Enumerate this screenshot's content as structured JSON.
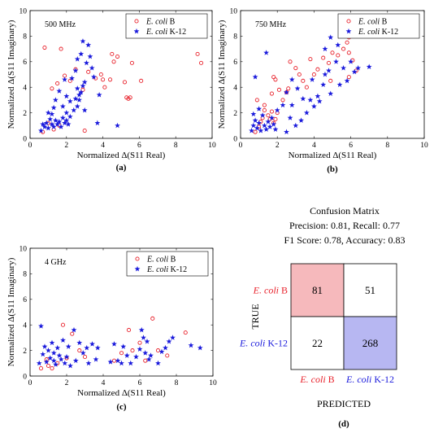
{
  "chart_data": [
    {
      "type": "scatter",
      "panel_label": "(a)",
      "frequency_label": "500 MHz",
      "xlabel": "Normalized Δ(S11 Real)",
      "ylabel": "Normalized Δ(S11 Imaginary)",
      "xlim": [
        0,
        10
      ],
      "ylim": [
        0,
        10
      ],
      "xticks": [
        "0",
        "2",
        "4",
        "6",
        "8",
        "10"
      ],
      "yticks": [
        "0",
        "2",
        "4",
        "6",
        "8",
        "10"
      ],
      "legend_position": "top-right",
      "series": [
        {
          "name_italic": "E. coli",
          "name_rest": " B",
          "marker": "circle",
          "color": "#e8202a",
          "points": [
            [
              0.8,
              7.1
            ],
            [
              1.7,
              7.0
            ],
            [
              1.2,
              3.9
            ],
            [
              1.5,
              4.3
            ],
            [
              1.9,
              4.9
            ],
            [
              2.5,
              5.4
            ],
            [
              2.9,
              3.8
            ],
            [
              3.2,
              5.2
            ],
            [
              3.6,
              4.7
            ],
            [
              3.9,
              5.0
            ],
            [
              4.1,
              4.0
            ],
            [
              4.4,
              4.6
            ],
            [
              4.6,
              6.0
            ],
            [
              4.8,
              6.4
            ],
            [
              5.2,
              4.4
            ],
            [
              5.3,
              3.2
            ],
            [
              5.4,
              3.1
            ],
            [
              5.5,
              3.2
            ],
            [
              5.6,
              5.9
            ],
            [
              6.1,
              4.5
            ],
            [
              9.2,
              6.6
            ],
            [
              9.4,
              5.9
            ],
            [
              3.0,
              0.6
            ],
            [
              1.0,
              1.2
            ],
            [
              1.3,
              0.7
            ],
            [
              0.7,
              0.5
            ],
            [
              1.6,
              1.0
            ],
            [
              4.0,
              4.6
            ],
            [
              2.2,
              4.5
            ],
            [
              4.5,
              6.6
            ]
          ]
        },
        {
          "name_italic": "E. coli",
          "name_rest": " K-12",
          "marker": "star",
          "color": "#1a1adc",
          "points": [
            [
              0.6,
              0.6
            ],
            [
              0.8,
              0.9
            ],
            [
              0.9,
              1.2
            ],
            [
              1.0,
              0.8
            ],
            [
              1.1,
              1.5
            ],
            [
              1.2,
              1.1
            ],
            [
              1.3,
              0.9
            ],
            [
              1.4,
              1.4
            ],
            [
              1.5,
              1.1
            ],
            [
              1.6,
              1.3
            ],
            [
              1.7,
              0.9
            ],
            [
              1.8,
              1.6
            ],
            [
              1.9,
              1.2
            ],
            [
              2.0,
              1.4
            ],
            [
              2.1,
              1.1
            ],
            [
              0.7,
              1.1
            ],
            [
              1.0,
              2.0
            ],
            [
              1.2,
              1.9
            ],
            [
              1.4,
              3.0
            ],
            [
              1.6,
              3.7
            ],
            [
              1.8,
              2.5
            ],
            [
              2.0,
              3.3
            ],
            [
              2.2,
              2.9
            ],
            [
              2.4,
              2.2
            ],
            [
              2.5,
              3.1
            ],
            [
              2.6,
              3.9
            ],
            [
              2.7,
              3.4
            ],
            [
              2.8,
              3.6
            ],
            [
              2.9,
              4.1
            ],
            [
              3.0,
              4.4
            ],
            [
              2.6,
              6.2
            ],
            [
              2.8,
              6.6
            ],
            [
              2.9,
              7.6
            ],
            [
              3.1,
              5.9
            ],
            [
              3.2,
              7.3
            ],
            [
              3.3,
              6.4
            ],
            [
              3.4,
              5.5
            ],
            [
              2.5,
              5.3
            ],
            [
              2.3,
              4.7
            ],
            [
              1.9,
              4.6
            ],
            [
              3.5,
              4.8
            ],
            [
              3.8,
              3.4
            ],
            [
              3.7,
              1.2
            ],
            [
              4.8,
              1.0
            ],
            [
              2.7,
              3.0
            ],
            [
              2.6,
              2.5
            ],
            [
              3.0,
              2.2
            ],
            [
              2.2,
              1.7
            ],
            [
              1.3,
              2.4
            ],
            [
              2.0,
              2.0
            ]
          ]
        }
      ]
    },
    {
      "type": "scatter",
      "panel_label": "(b)",
      "frequency_label": "750 MHz",
      "xlabel": "Normalized Δ(S11 Real)",
      "ylabel": "Normalized Δ(S11 Imaginary)",
      "xlim": [
        0,
        10
      ],
      "ylim": [
        0,
        10
      ],
      "xticks": [
        "0",
        "2",
        "4",
        "6",
        "8",
        "10"
      ],
      "yticks": [
        "0",
        "2",
        "4",
        "6",
        "8",
        "10"
      ],
      "legend_position": "top-right",
      "series": [
        {
          "name_italic": "E. coli",
          "name_rest": " B",
          "marker": "circle",
          "color": "#e8202a",
          "points": [
            [
              0.8,
              0.5
            ],
            [
              1.0,
              0.9
            ],
            [
              1.1,
              1.3
            ],
            [
              1.2,
              1.6
            ],
            [
              1.3,
              2.2
            ],
            [
              1.5,
              1.8
            ],
            [
              1.6,
              1.5
            ],
            [
              1.7,
              2.1
            ],
            [
              1.8,
              1.2
            ],
            [
              1.9,
              1.5
            ],
            [
              2.0,
              2.0
            ],
            [
              0.9,
              3.0
            ],
            [
              1.7,
              3.5
            ],
            [
              1.8,
              4.8
            ],
            [
              1.9,
              4.6
            ],
            [
              2.1,
              3.8
            ],
            [
              2.3,
              3.0
            ],
            [
              2.5,
              3.6
            ],
            [
              2.6,
              3.9
            ],
            [
              2.7,
              6.0
            ],
            [
              3.0,
              5.5
            ],
            [
              3.2,
              5.0
            ],
            [
              3.4,
              4.5
            ],
            [
              3.8,
              6.2
            ],
            [
              4.2,
              5.4
            ],
            [
              4.5,
              6.3
            ],
            [
              4.8,
              5.9
            ],
            [
              5.0,
              6.7
            ],
            [
              5.3,
              6.5
            ],
            [
              5.6,
              7.0
            ],
            [
              5.8,
              7.5
            ],
            [
              5.9,
              7.9
            ],
            [
              5.9,
              6.7
            ],
            [
              6.1,
              6.1
            ],
            [
              6.3,
              5.3
            ],
            [
              5.9,
              4.8
            ],
            [
              4.9,
              4.5
            ],
            [
              4.0,
              5.0
            ],
            [
              3.6,
              4.0
            ],
            [
              1.3,
              2.6
            ]
          ]
        },
        {
          "name_italic": "E. coli",
          "name_rest": " K-12",
          "marker": "star",
          "color": "#1a1adc",
          "points": [
            [
              0.6,
              0.6
            ],
            [
              0.7,
              1.0
            ],
            [
              0.8,
              1.4
            ],
            [
              0.9,
              0.8
            ],
            [
              1.0,
              1.2
            ],
            [
              1.1,
              0.6
            ],
            [
              1.2,
              1.8
            ],
            [
              1.3,
              1.0
            ],
            [
              1.4,
              0.7
            ],
            [
              1.5,
              1.3
            ],
            [
              1.6,
              0.9
            ],
            [
              1.7,
              1.6
            ],
            [
              1.8,
              1.1
            ],
            [
              1.9,
              0.7
            ],
            [
              0.7,
              1.9
            ],
            [
              0.8,
              4.8
            ],
            [
              1.4,
              6.7
            ],
            [
              2.5,
              3.6
            ],
            [
              2.8,
              2.6
            ],
            [
              2.7,
              1.6
            ],
            [
              3.0,
              1.0
            ],
            [
              3.3,
              1.4
            ],
            [
              3.4,
              3.1
            ],
            [
              3.6,
              2.0
            ],
            [
              3.8,
              3.0
            ],
            [
              4.0,
              2.5
            ],
            [
              4.2,
              3.3
            ],
            [
              3.9,
              4.6
            ],
            [
              4.3,
              2.9
            ],
            [
              4.6,
              5.0
            ],
            [
              4.8,
              5.3
            ],
            [
              4.9,
              3.5
            ],
            [
              5.2,
              6.0
            ],
            [
              5.4,
              4.2
            ],
            [
              5.6,
              5.5
            ],
            [
              5.8,
              4.5
            ],
            [
              6.0,
              6.0
            ],
            [
              6.2,
              5.2
            ],
            [
              6.4,
              5.5
            ],
            [
              7.0,
              5.6
            ],
            [
              4.6,
              7.0
            ],
            [
              4.9,
              7.9
            ],
            [
              5.3,
              7.3
            ],
            [
              2.8,
              4.6
            ],
            [
              3.1,
              3.9
            ],
            [
              2.3,
              2.6
            ],
            [
              2.0,
              2.2
            ],
            [
              2.5,
              0.5
            ],
            [
              1.0,
              2.3
            ],
            [
              4.5,
              4.2
            ]
          ]
        }
      ]
    },
    {
      "type": "scatter",
      "panel_label": "(c)",
      "frequency_label": "4 GHz",
      "xlabel": "Normalized Δ(S11 Real)",
      "ylabel": "Normalized Δ(S11 Imaginary)",
      "xlim": [
        0,
        10
      ],
      "ylim": [
        0,
        10
      ],
      "xticks": [
        "0",
        "2",
        "4",
        "6",
        "8",
        "10"
      ],
      "yticks": [
        "0",
        "2",
        "4",
        "6",
        "8",
        "10"
      ],
      "legend_position": "top-right",
      "series": [
        {
          "name_italic": "E. coli",
          "name_rest": " B",
          "marker": "circle",
          "color": "#e8202a",
          "points": [
            [
              0.6,
              0.6
            ],
            [
              0.9,
              1.3
            ],
            [
              1.2,
              0.6
            ],
            [
              1.5,
              1.0
            ],
            [
              1.8,
              4.0
            ],
            [
              2.0,
              1.4
            ],
            [
              2.3,
              3.3
            ],
            [
              2.7,
              2.0
            ],
            [
              3.0,
              1.5
            ],
            [
              4.6,
              1.2
            ],
            [
              5.0,
              1.8
            ],
            [
              5.4,
              3.6
            ],
            [
              5.6,
              2.0
            ],
            [
              6.0,
              2.6
            ],
            [
              6.3,
              1.2
            ],
            [
              6.7,
              4.5
            ],
            [
              7.0,
              2.0
            ],
            [
              7.5,
              1.6
            ],
            [
              8.5,
              3.4
            ],
            [
              1.0,
              0.8
            ]
          ]
        },
        {
          "name_italic": "E. coli",
          "name_rest": " K-12",
          "marker": "star",
          "color": "#1a1adc",
          "points": [
            [
              0.5,
              1.0
            ],
            [
              0.6,
              3.9
            ],
            [
              0.7,
              1.7
            ],
            [
              0.8,
              2.3
            ],
            [
              0.9,
              1.1
            ],
            [
              1.0,
              2.0
            ],
            [
              1.1,
              1.4
            ],
            [
              1.2,
              2.6
            ],
            [
              1.3,
              1.8
            ],
            [
              1.4,
              0.9
            ],
            [
              1.5,
              2.2
            ],
            [
              1.6,
              1.6
            ],
            [
              1.7,
              1.3
            ],
            [
              1.8,
              2.8
            ],
            [
              1.9,
              1.0
            ],
            [
              2.0,
              1.5
            ],
            [
              2.1,
              2.3
            ],
            [
              2.2,
              0.8
            ],
            [
              2.4,
              3.6
            ],
            [
              2.5,
              1.2
            ],
            [
              2.7,
              2.6
            ],
            [
              2.9,
              1.8
            ],
            [
              3.1,
              2.2
            ],
            [
              3.2,
              1.0
            ],
            [
              3.4,
              2.5
            ],
            [
              3.6,
              1.3
            ],
            [
              4.4,
              1.1
            ],
            [
              4.6,
              2.5
            ],
            [
              4.8,
              1.2
            ],
            [
              5.0,
              1.0
            ],
            [
              5.1,
              2.3
            ],
            [
              5.3,
              1.6
            ],
            [
              5.5,
              1.0
            ],
            [
              5.8,
              1.5
            ],
            [
              6.1,
              3.6
            ],
            [
              6.2,
              3.0
            ],
            [
              6.3,
              1.8
            ],
            [
              6.4,
              2.7
            ],
            [
              6.5,
              1.3
            ],
            [
              6.6,
              1.6
            ],
            [
              7.0,
              1.0
            ],
            [
              7.2,
              1.9
            ],
            [
              7.4,
              2.2
            ],
            [
              7.6,
              2.7
            ],
            [
              7.8,
              3.0
            ],
            [
              8.8,
              2.4
            ],
            [
              9.3,
              2.2
            ],
            [
              3.7,
              2.2
            ],
            [
              6.0,
              2.1
            ],
            [
              1.3,
              1.2
            ]
          ]
        }
      ]
    },
    {
      "type": "heatmap",
      "panel_label": "(d)",
      "title": "Confusion Matrix",
      "metrics_line1": "Precision: 0.81, Recall: 0.77",
      "metrics_line2": "F1 Score: 0.78, Accuracy: 0.83",
      "ylabel": "TRUE",
      "xlabel": "PREDICTED",
      "row_labels": [
        {
          "italic": "E. coli",
          "rest": " B",
          "color": "#e8202a"
        },
        {
          "italic": "E. coli",
          "rest": " K-12",
          "color": "#1a1adc"
        }
      ],
      "col_labels": [
        {
          "italic": "E. coli",
          "rest": " B",
          "color": "#e8202a"
        },
        {
          "italic": "E. coli",
          "rest": " K-12",
          "color": "#1a1adc"
        }
      ],
      "cells": [
        [
          "81",
          "51"
        ],
        [
          "22",
          "268"
        ]
      ],
      "cell_colors": [
        [
          "#f6b9bc",
          "#ffffff"
        ],
        [
          "#ffffff",
          "#b7b7f2"
        ]
      ]
    }
  ]
}
